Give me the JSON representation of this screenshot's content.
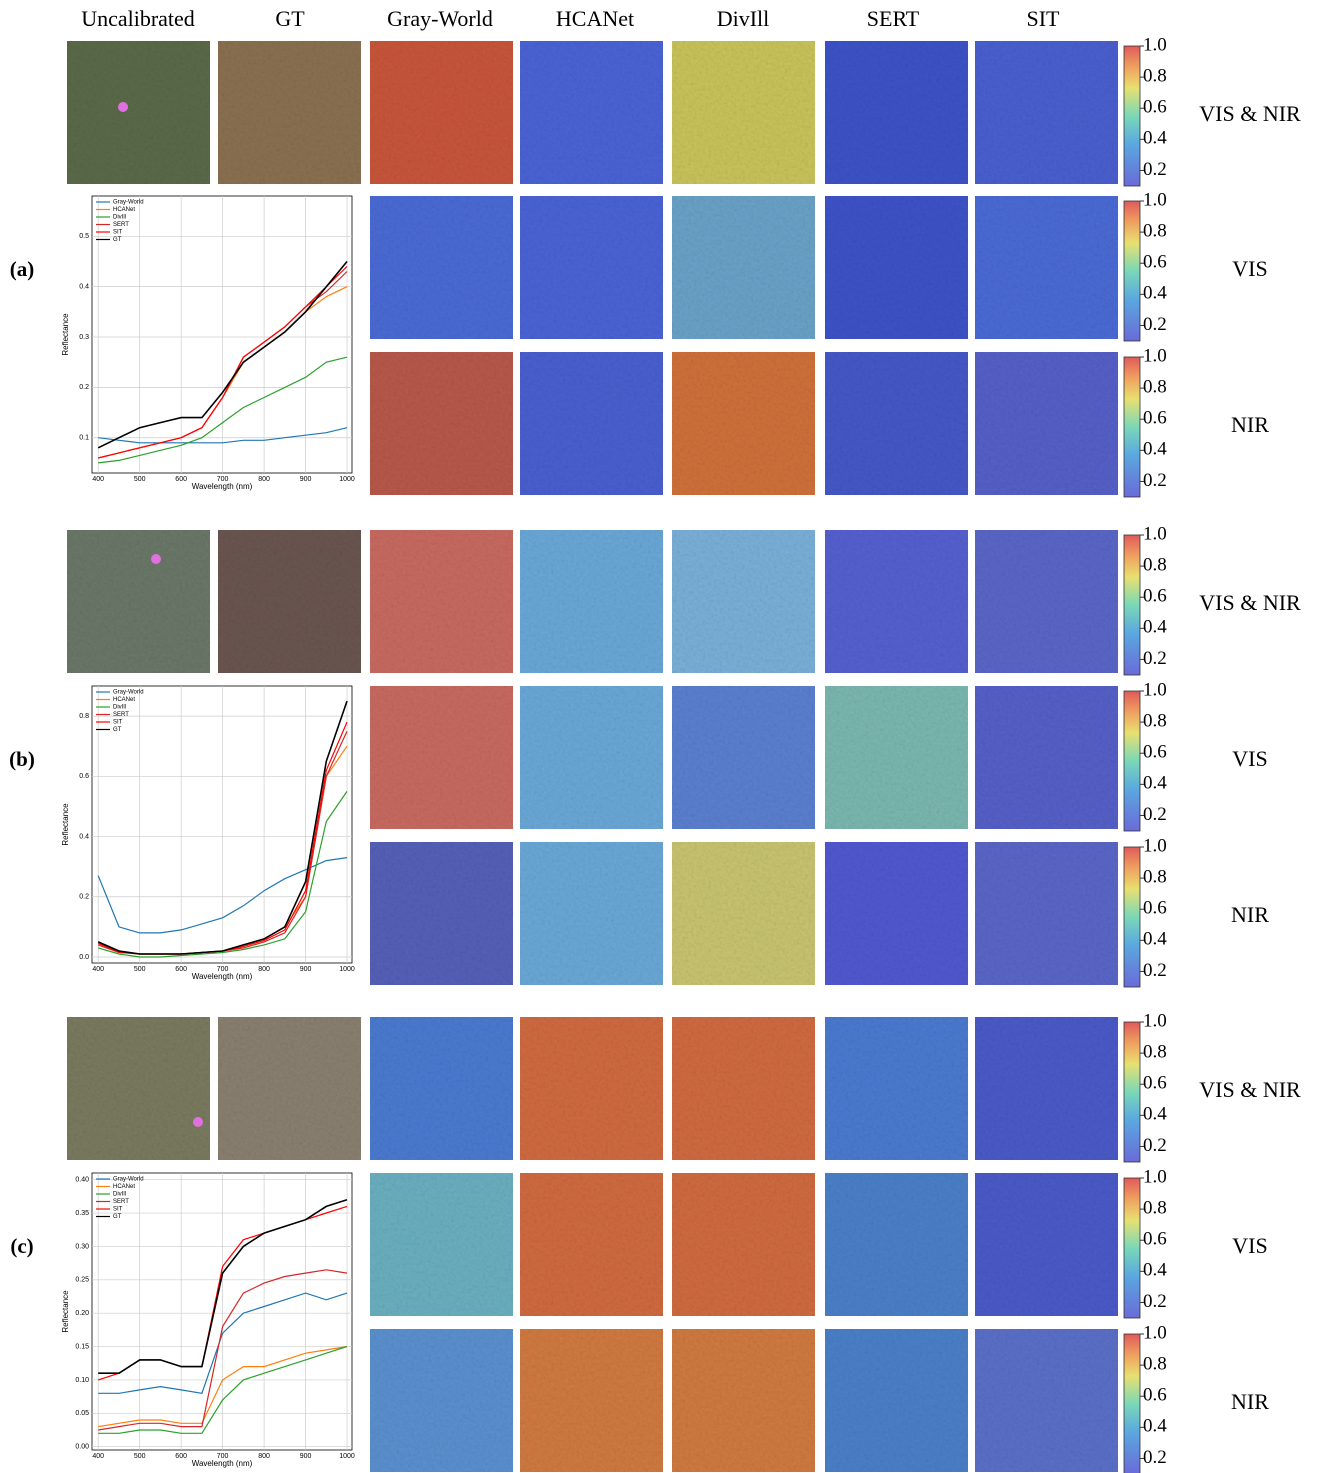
{
  "header": {
    "columns": [
      "Uncalibrated",
      "GT",
      "Gray-World",
      "HCANet",
      "DivIll",
      "SERT",
      "SIT"
    ]
  },
  "colorbar": {
    "lim": [
      0.1,
      1.0
    ],
    "ticks": [
      0.2,
      0.4,
      0.6,
      0.8,
      {
        "value": 1.0,
        "label": "1.0"
      }
    ]
  },
  "groups": [
    {
      "label": "(a)",
      "bands": [
        "VIS & NIR",
        "VIS",
        "NIR"
      ],
      "chart": {
        "type": "line",
        "xlabel": "Wavelength (nm)",
        "ylabel": "Reflectance",
        "x": [
          400,
          450,
          500,
          550,
          600,
          650,
          700,
          750,
          800,
          850,
          900,
          950,
          1000
        ],
        "xlim": [
          385,
          1012
        ],
        "xticks": [
          400,
          500,
          600,
          700,
          800,
          900,
          1000
        ],
        "ylim": [
          0.03,
          0.58
        ],
        "yticks": [
          0.1,
          0.2,
          0.3,
          0.4,
          0.5
        ],
        "series": [
          {
            "name": "Gray-World",
            "color": "#1f77b4",
            "values": [
              0.1,
              0.095,
              0.09,
              0.09,
              0.09,
              0.09,
              0.09,
              0.095,
              0.095,
              0.1,
              0.105,
              0.11,
              0.12
            ]
          },
          {
            "name": "HCANet",
            "color": "#ff7f0e",
            "values": [
              0.06,
              0.07,
              0.08,
              0.09,
              0.1,
              0.12,
              0.18,
              0.25,
              0.28,
              0.31,
              0.35,
              0.38,
              0.4
            ]
          },
          {
            "name": "DivIll",
            "color": "#2ca02c",
            "values": [
              0.05,
              0.055,
              0.065,
              0.075,
              0.085,
              0.1,
              0.13,
              0.16,
              0.18,
              0.2,
              0.22,
              0.25,
              0.26
            ]
          },
          {
            "name": "SERT",
            "color": "#d62728",
            "values": [
              0.06,
              0.07,
              0.08,
              0.09,
              0.1,
              0.12,
              0.18,
              0.26,
              0.29,
              0.32,
              0.36,
              0.39,
              0.43
            ]
          },
          {
            "name": "SIT",
            "color": "#ff0000",
            "values": [
              0.06,
              0.07,
              0.08,
              0.09,
              0.1,
              0.12,
              0.18,
              0.26,
              0.29,
              0.32,
              0.36,
              0.4,
              0.44
            ]
          },
          {
            "name": "GT",
            "color": "#000000",
            "values": [
              0.08,
              0.1,
              0.12,
              0.13,
              0.14,
              0.14,
              0.19,
              0.25,
              0.28,
              0.31,
              0.35,
              0.4,
              0.45
            ]
          }
        ]
      }
    },
    {
      "label": "(b)",
      "bands": [
        "VIS & NIR",
        "VIS",
        "NIR"
      ],
      "chart": {
        "type": "line",
        "xlabel": "Wavelength (nm)",
        "ylabel": "Reflectance",
        "x": [
          400,
          450,
          500,
          550,
          600,
          650,
          700,
          750,
          800,
          850,
          900,
          950,
          1000
        ],
        "xlim": [
          385,
          1012
        ],
        "xticks": [
          400,
          500,
          600,
          700,
          800,
          900,
          1000
        ],
        "ylim": [
          -0.02,
          0.9
        ],
        "yticks": [
          {
            "value": 0,
            "label": "0.0"
          },
          0.2,
          0.4,
          0.6,
          0.8
        ],
        "series": [
          {
            "name": "Gray-World",
            "color": "#1f77b4",
            "values": [
              0.27,
              0.1,
              0.08,
              0.08,
              0.09,
              0.11,
              0.13,
              0.17,
              0.22,
              0.26,
              0.29,
              0.32,
              0.33
            ]
          },
          {
            "name": "HCANet",
            "color": "#ff7f0e",
            "values": [
              0.05,
              0.02,
              0.01,
              0.01,
              0.01,
              0.015,
              0.02,
              0.04,
              0.06,
              0.1,
              0.2,
              0.6,
              0.7
            ]
          },
          {
            "name": "DivIll",
            "color": "#2ca02c",
            "values": [
              0.03,
              0.01,
              0,
              0,
              0.005,
              0.01,
              0.015,
              0.025,
              0.04,
              0.06,
              0.15,
              0.45,
              0.55
            ]
          },
          {
            "name": "SERT",
            "color": "#d62728",
            "values": [
              0.04,
              0.015,
              0.01,
              0.01,
              0.01,
              0.015,
              0.02,
              0.03,
              0.05,
              0.08,
              0.2,
              0.6,
              0.75
            ]
          },
          {
            "name": "SIT",
            "color": "#ff0000",
            "values": [
              0.045,
              0.017,
              0.01,
              0.01,
              0.01,
              0.015,
              0.02,
              0.035,
              0.055,
              0.09,
              0.22,
              0.62,
              0.78
            ]
          },
          {
            "name": "GT",
            "color": "#000000",
            "values": [
              0.05,
              0.02,
              0.01,
              0.01,
              0.01,
              0.015,
              0.02,
              0.04,
              0.06,
              0.1,
              0.25,
              0.65,
              0.85
            ]
          }
        ]
      }
    },
    {
      "label": "(c)",
      "bands": [
        "VIS & NIR",
        "VIS",
        "NIR"
      ],
      "chart": {
        "type": "line",
        "xlabel": "Wavelength (nm)",
        "ylabel": "Reflectance",
        "x": [
          400,
          450,
          500,
          550,
          600,
          650,
          700,
          750,
          800,
          850,
          900,
          950,
          1000
        ],
        "xlim": [
          385,
          1012
        ],
        "xticks": [
          400,
          500,
          600,
          700,
          800,
          900,
          1000
        ],
        "ylim": [
          -0.005,
          0.41
        ],
        "yticks": [
          {
            "value": 0,
            "label": "0.00"
          },
          0.05,
          {
            "value": 0.1,
            "label": "0.10"
          },
          0.15,
          {
            "value": 0.2,
            "label": "0.20"
          },
          0.25,
          {
            "value": 0.3,
            "label": "0.30"
          },
          0.35,
          {
            "value": 0.4,
            "label": "0.40"
          }
        ],
        "series": [
          {
            "name": "Gray-World",
            "color": "#1f77b4",
            "values": [
              0.08,
              0.08,
              0.085,
              0.09,
              0.085,
              0.08,
              0.17,
              0.2,
              0.21,
              0.22,
              0.23,
              0.22,
              0.23
            ]
          },
          {
            "name": "HCANet",
            "color": "#ff7f0e",
            "values": [
              0.03,
              0.035,
              0.04,
              0.04,
              0.035,
              0.035,
              0.1,
              0.12,
              0.12,
              0.13,
              0.14,
              0.145,
              0.15
            ]
          },
          {
            "name": "DivIll",
            "color": "#2ca02c",
            "values": [
              0.02,
              0.02,
              0.025,
              0.025,
              0.02,
              0.02,
              0.07,
              0.1,
              0.11,
              0.12,
              0.13,
              0.14,
              0.15
            ]
          },
          {
            "name": "SERT",
            "color": "#d62728",
            "values": [
              0.025,
              0.03,
              0.035,
              0.035,
              0.03,
              0.03,
              0.18,
              0.23,
              0.245,
              0.255,
              0.26,
              0.265,
              0.26
            ]
          },
          {
            "name": "SIT",
            "color": "#ff0000",
            "values": [
              0.1,
              0.11,
              0.13,
              0.13,
              0.12,
              0.12,
              0.27,
              0.31,
              0.32,
              0.33,
              0.34,
              0.35,
              0.36
            ]
          },
          {
            "name": "GT",
            "color": "#000000",
            "values": [
              0.11,
              0.11,
              0.13,
              0.13,
              0.12,
              0.12,
              0.26,
              0.3,
              0.32,
              0.33,
              0.34,
              0.36,
              0.37
            ]
          }
        ]
      }
    }
  ]
}
